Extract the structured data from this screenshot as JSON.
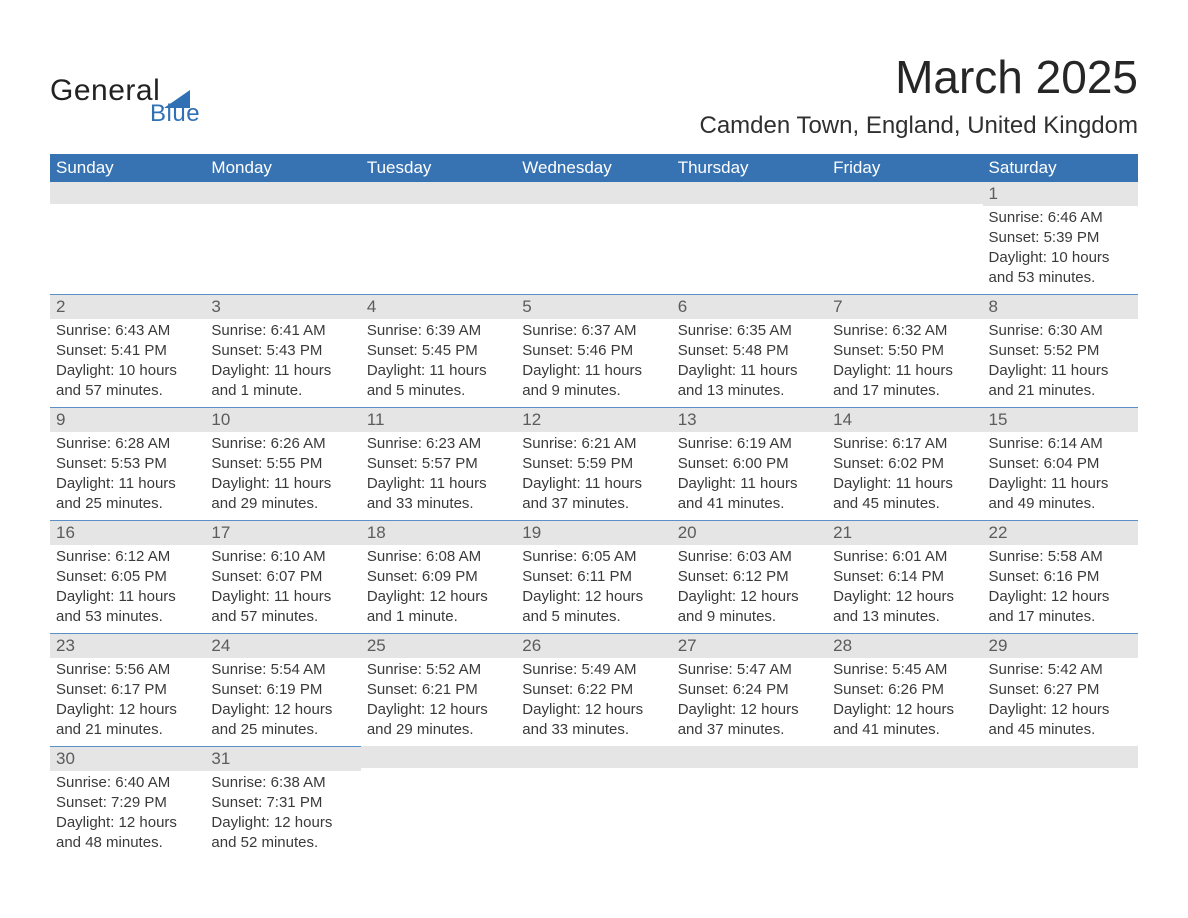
{
  "brand": {
    "name": "General",
    "sub": "Blue",
    "accent": "#2f71b4"
  },
  "header": {
    "month_title": "March 2025",
    "location": "Camden Town, England, United Kingdom"
  },
  "calendar": {
    "header_bg": "#3773b3",
    "header_text_color": "#ffffff",
    "row_line_color": "#5a8fc7",
    "daynum_bg": "#e5e5e5",
    "columns": [
      "Sunday",
      "Monday",
      "Tuesday",
      "Wednesday",
      "Thursday",
      "Friday",
      "Saturday"
    ],
    "days": {
      "1": {
        "sunrise": "6:46 AM",
        "sunset": "5:39 PM",
        "daylight": "10 hours and 53 minutes."
      },
      "2": {
        "sunrise": "6:43 AM",
        "sunset": "5:41 PM",
        "daylight": "10 hours and 57 minutes."
      },
      "3": {
        "sunrise": "6:41 AM",
        "sunset": "5:43 PM",
        "daylight": "11 hours and 1 minute."
      },
      "4": {
        "sunrise": "6:39 AM",
        "sunset": "5:45 PM",
        "daylight": "11 hours and 5 minutes."
      },
      "5": {
        "sunrise": "6:37 AM",
        "sunset": "5:46 PM",
        "daylight": "11 hours and 9 minutes."
      },
      "6": {
        "sunrise": "6:35 AM",
        "sunset": "5:48 PM",
        "daylight": "11 hours and 13 minutes."
      },
      "7": {
        "sunrise": "6:32 AM",
        "sunset": "5:50 PM",
        "daylight": "11 hours and 17 minutes."
      },
      "8": {
        "sunrise": "6:30 AM",
        "sunset": "5:52 PM",
        "daylight": "11 hours and 21 minutes."
      },
      "9": {
        "sunrise": "6:28 AM",
        "sunset": "5:53 PM",
        "daylight": "11 hours and 25 minutes."
      },
      "10": {
        "sunrise": "6:26 AM",
        "sunset": "5:55 PM",
        "daylight": "11 hours and 29 minutes."
      },
      "11": {
        "sunrise": "6:23 AM",
        "sunset": "5:57 PM",
        "daylight": "11 hours and 33 minutes."
      },
      "12": {
        "sunrise": "6:21 AM",
        "sunset": "5:59 PM",
        "daylight": "11 hours and 37 minutes."
      },
      "13": {
        "sunrise": "6:19 AM",
        "sunset": "6:00 PM",
        "daylight": "11 hours and 41 minutes."
      },
      "14": {
        "sunrise": "6:17 AM",
        "sunset": "6:02 PM",
        "daylight": "11 hours and 45 minutes."
      },
      "15": {
        "sunrise": "6:14 AM",
        "sunset": "6:04 PM",
        "daylight": "11 hours and 49 minutes."
      },
      "16": {
        "sunrise": "6:12 AM",
        "sunset": "6:05 PM",
        "daylight": "11 hours and 53 minutes."
      },
      "17": {
        "sunrise": "6:10 AM",
        "sunset": "6:07 PM",
        "daylight": "11 hours and 57 minutes."
      },
      "18": {
        "sunrise": "6:08 AM",
        "sunset": "6:09 PM",
        "daylight": "12 hours and 1 minute."
      },
      "19": {
        "sunrise": "6:05 AM",
        "sunset": "6:11 PM",
        "daylight": "12 hours and 5 minutes."
      },
      "20": {
        "sunrise": "6:03 AM",
        "sunset": "6:12 PM",
        "daylight": "12 hours and 9 minutes."
      },
      "21": {
        "sunrise": "6:01 AM",
        "sunset": "6:14 PM",
        "daylight": "12 hours and 13 minutes."
      },
      "22": {
        "sunrise": "5:58 AM",
        "sunset": "6:16 PM",
        "daylight": "12 hours and 17 minutes."
      },
      "23": {
        "sunrise": "5:56 AM",
        "sunset": "6:17 PM",
        "daylight": "12 hours and 21 minutes."
      },
      "24": {
        "sunrise": "5:54 AM",
        "sunset": "6:19 PM",
        "daylight": "12 hours and 25 minutes."
      },
      "25": {
        "sunrise": "5:52 AM",
        "sunset": "6:21 PM",
        "daylight": "12 hours and 29 minutes."
      },
      "26": {
        "sunrise": "5:49 AM",
        "sunset": "6:22 PM",
        "daylight": "12 hours and 33 minutes."
      },
      "27": {
        "sunrise": "5:47 AM",
        "sunset": "6:24 PM",
        "daylight": "12 hours and 37 minutes."
      },
      "28": {
        "sunrise": "5:45 AM",
        "sunset": "6:26 PM",
        "daylight": "12 hours and 41 minutes."
      },
      "29": {
        "sunrise": "5:42 AM",
        "sunset": "6:27 PM",
        "daylight": "12 hours and 45 minutes."
      },
      "30": {
        "sunrise": "6:40 AM",
        "sunset": "7:29 PM",
        "daylight": "12 hours and 48 minutes."
      },
      "31": {
        "sunrise": "6:38 AM",
        "sunset": "7:31 PM",
        "daylight": "12 hours and 52 minutes."
      }
    },
    "labels": {
      "sunrise": "Sunrise:",
      "sunset": "Sunset:",
      "daylight": "Daylight:"
    },
    "weeks": [
      [
        null,
        null,
        null,
        null,
        null,
        null,
        "1"
      ],
      [
        "2",
        "3",
        "4",
        "5",
        "6",
        "7",
        "8"
      ],
      [
        "9",
        "10",
        "11",
        "12",
        "13",
        "14",
        "15"
      ],
      [
        "16",
        "17",
        "18",
        "19",
        "20",
        "21",
        "22"
      ],
      [
        "23",
        "24",
        "25",
        "26",
        "27",
        "28",
        "29"
      ],
      [
        "30",
        "31",
        null,
        null,
        null,
        null,
        null
      ]
    ]
  }
}
